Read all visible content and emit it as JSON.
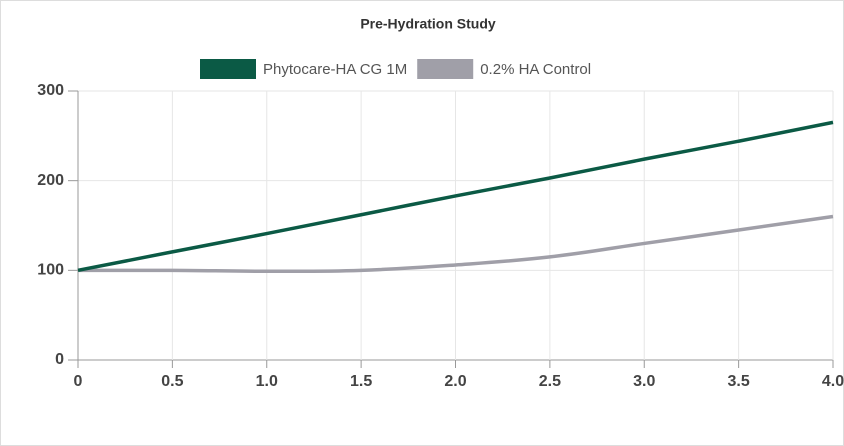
{
  "chart_data": {
    "type": "line",
    "title": "Pre-Hydration Study",
    "categories": [
      "0",
      "0.5",
      "1.0",
      "1.5",
      "2.0",
      "2.5",
      "3.0",
      "3.5",
      "4.0"
    ],
    "series": [
      {
        "name": "Phytocare-HA CG 1M",
        "color": "#0b5a45",
        "values": [
          100,
          120.6,
          141,
          162,
          183,
          203,
          224,
          244,
          265
        ]
      },
      {
        "name": "0.2% HA Control",
        "color": "#a09fa8",
        "values": [
          100,
          100,
          99,
          100,
          106,
          115,
          130,
          145,
          160
        ]
      }
    ],
    "ylim": [
      0,
      300
    ],
    "yticks": [
      0,
      100,
      200,
      300
    ],
    "grid": true,
    "legend": "top"
  }
}
